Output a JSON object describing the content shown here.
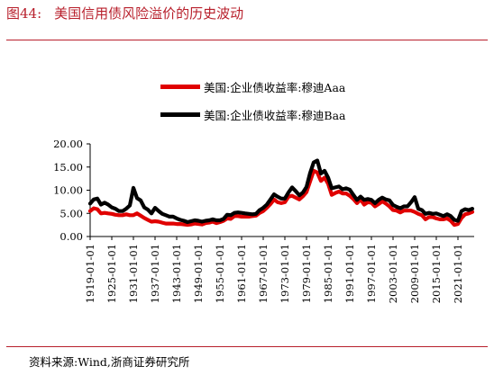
{
  "figure": {
    "number": "图44:",
    "title": "美国信用债风险溢价的历史波动",
    "source": "资料来源:Wind,浙商证券研究所"
  },
  "colors": {
    "accent": "#b8202c",
    "aaa": "#e00000",
    "baa": "#000000"
  },
  "chart_data": {
    "type": "line",
    "title": "",
    "xlabel": "",
    "ylabel": "",
    "ylim": [
      0,
      20
    ],
    "yticks": [
      "20.00",
      "15.00",
      "10.00",
      "5.00",
      "0.00"
    ],
    "ytick_values": [
      20,
      15,
      10,
      5,
      0
    ],
    "xlim": [
      1919,
      2025.5
    ],
    "xticks": [
      "1919-01-01",
      "1925-01-01",
      "1931-01-01",
      "1937-01-01",
      "1943-01-01",
      "1949-01-01",
      "1955-01-01",
      "1961-01-01",
      "1967-01-01",
      "1973-01-01",
      "1979-01-01",
      "1985-01-01",
      "1991-01-01",
      "1997-01-01",
      "2003-01-01",
      "2009-01-01",
      "2015-01-01",
      "2021-01-01"
    ],
    "xtick_years": [
      1919,
      1925,
      1931,
      1937,
      1943,
      1949,
      1955,
      1961,
      1967,
      1973,
      1979,
      1985,
      1991,
      1997,
      2003,
      2009,
      2015,
      2021
    ],
    "legend_position": "top",
    "series": [
      {
        "name": "美国:企业债收益率:穆迪Aaa",
        "color": "#e00000",
        "x": [
          1919,
          1920,
          1921,
          1922,
          1923,
          1924,
          1925,
          1926,
          1927,
          1928,
          1929,
          1930,
          1931,
          1932,
          1933,
          1934,
          1935,
          1936,
          1937,
          1938,
          1939,
          1940,
          1941,
          1942,
          1943,
          1944,
          1945,
          1946,
          1947,
          1948,
          1949,
          1950,
          1951,
          1952,
          1953,
          1954,
          1955,
          1956,
          1957,
          1958,
          1959,
          1960,
          1961,
          1962,
          1963,
          1964,
          1965,
          1966,
          1967,
          1968,
          1969,
          1970,
          1971,
          1972,
          1973,
          1974,
          1975,
          1976,
          1977,
          1978,
          1979,
          1980,
          1981,
          1982,
          1983,
          1984,
          1985,
          1986,
          1987,
          1988,
          1989,
          1990,
          1991,
          1992,
          1993,
          1994,
          1995,
          1996,
          1997,
          1998,
          1999,
          2000,
          2001,
          2002,
          2003,
          2004,
          2005,
          2006,
          2007,
          2008,
          2009,
          2010,
          2011,
          2012,
          2013,
          2014,
          2015,
          2016,
          2017,
          2018,
          2019,
          2020,
          2021,
          2022,
          2023,
          2024,
          2025
        ],
        "y": [
          5.5,
          6.1,
          5.9,
          5.0,
          5.1,
          5.0,
          4.9,
          4.7,
          4.6,
          4.6,
          4.8,
          4.6,
          4.6,
          5.0,
          4.5,
          4.0,
          3.6,
          3.2,
          3.3,
          3.2,
          3.0,
          2.8,
          2.8,
          2.8,
          2.7,
          2.7,
          2.6,
          2.5,
          2.6,
          2.8,
          2.7,
          2.6,
          2.9,
          3.0,
          3.2,
          2.9,
          3.1,
          3.4,
          3.9,
          3.8,
          4.4,
          4.4,
          4.3,
          4.3,
          4.3,
          4.4,
          4.5,
          5.1,
          5.5,
          6.2,
          7.0,
          8.0,
          7.4,
          7.2,
          7.4,
          8.6,
          8.8,
          8.4,
          8.0,
          8.7,
          9.6,
          11.9,
          14.2,
          13.8,
          12.0,
          12.7,
          11.4,
          9.0,
          9.4,
          9.7,
          9.3,
          9.3,
          8.8,
          8.1,
          7.2,
          8.0,
          6.9,
          7.4,
          7.3,
          6.5,
          7.0,
          7.6,
          7.1,
          6.5,
          5.7,
          5.6,
          5.2,
          5.6,
          5.6,
          5.6,
          5.3,
          4.9,
          4.6,
          3.7,
          4.2,
          4.2,
          3.9,
          3.7,
          3.7,
          3.9,
          3.4,
          2.5,
          2.7,
          4.0,
          4.8,
          5.0,
          5.3
        ]
      },
      {
        "name": "美国:企业债收益率:穆迪Baa",
        "color": "#000000",
        "x": [
          1919,
          1920,
          1921,
          1922,
          1923,
          1924,
          1925,
          1926,
          1927,
          1928,
          1929,
          1930,
          1931,
          1932,
          1933,
          1934,
          1935,
          1936,
          1937,
          1938,
          1939,
          1940,
          1941,
          1942,
          1943,
          1944,
          1945,
          1946,
          1947,
          1948,
          1949,
          1950,
          1951,
          1952,
          1953,
          1954,
          1955,
          1956,
          1957,
          1958,
          1959,
          1960,
          1961,
          1962,
          1963,
          1964,
          1965,
          1966,
          1967,
          1968,
          1969,
          1970,
          1971,
          1972,
          1973,
          1974,
          1975,
          1976,
          1977,
          1978,
          1979,
          1980,
          1981,
          1982,
          1983,
          1984,
          1985,
          1986,
          1987,
          1988,
          1989,
          1990,
          1991,
          1992,
          1993,
          1994,
          1995,
          1996,
          1997,
          1998,
          1999,
          2000,
          2001,
          2002,
          2003,
          2004,
          2005,
          2006,
          2007,
          2008,
          2009,
          2010,
          2011,
          2012,
          2013,
          2014,
          2015,
          2016,
          2017,
          2018,
          2019,
          2020,
          2021,
          2022,
          2023,
          2024,
          2025
        ],
        "y": [
          7.1,
          8.0,
          8.2,
          6.9,
          7.3,
          6.9,
          6.3,
          6.0,
          5.5,
          5.5,
          6.0,
          6.7,
          10.5,
          8.3,
          7.8,
          6.3,
          5.8,
          5.0,
          6.2,
          5.5,
          4.9,
          4.6,
          4.3,
          4.3,
          3.9,
          3.6,
          3.4,
          3.1,
          3.3,
          3.5,
          3.4,
          3.2,
          3.4,
          3.5,
          3.7,
          3.5,
          3.5,
          3.8,
          4.7,
          4.6,
          5.1,
          5.2,
          5.1,
          5.0,
          4.9,
          4.8,
          4.9,
          5.7,
          6.2,
          6.9,
          8.0,
          9.1,
          8.6,
          8.2,
          8.2,
          9.5,
          10.6,
          9.8,
          8.9,
          9.5,
          10.7,
          13.7,
          16.0,
          16.4,
          13.6,
          14.2,
          12.7,
          10.4,
          10.6,
          10.8,
          10.2,
          10.4,
          10.1,
          9.0,
          7.9,
          8.6,
          7.9,
          8.1,
          7.9,
          7.2,
          7.9,
          8.4,
          8.0,
          7.8,
          6.8,
          6.4,
          6.1,
          6.5,
          6.5,
          7.4,
          8.5,
          6.0,
          5.7,
          4.9,
          5.1,
          4.9,
          5.0,
          4.7,
          4.4,
          4.8,
          4.4,
          3.6,
          3.4,
          5.5,
          5.9,
          5.7,
          6.0
        ]
      }
    ]
  }
}
